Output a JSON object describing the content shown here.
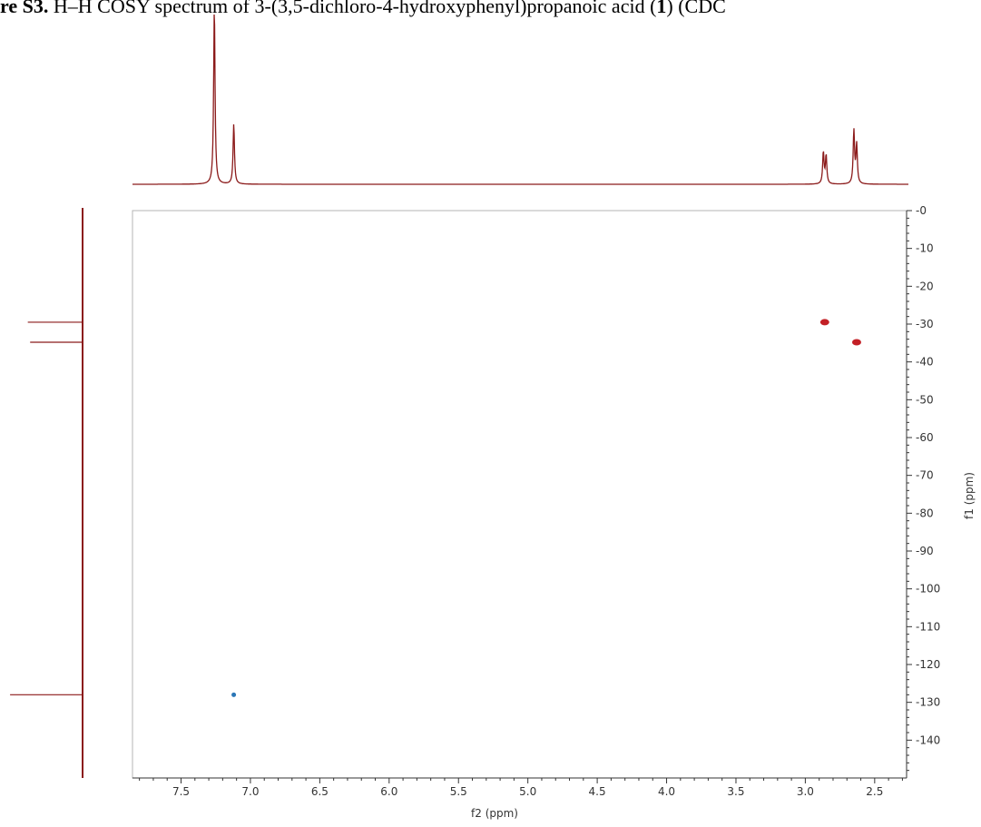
{
  "caption": {
    "prefix": "re S3.",
    "text": " H–H COSY spectrum of 3-(3,5-dichloro-4-hydroxyphenyl)propanoic acid (",
    "compound": "1",
    "suffix": ") (CDC"
  },
  "chart_data": {
    "type": "scatter",
    "subtype": "2D NMR COSY contour plot with 1D projections",
    "xlabel": "f2 (ppm)",
    "ylabel": "f1 (ppm)",
    "xlim": [
      7.85,
      2.27
    ],
    "ylim": [
      0,
      150
    ],
    "x_ticks": [
      "7.5",
      "7.0",
      "6.5",
      "6.0",
      "5.5",
      "5.0",
      "4.5",
      "4.0",
      "3.5",
      "3.0",
      "2.5"
    ],
    "x_tick_values": [
      7.5,
      7.0,
      6.5,
      6.0,
      5.5,
      5.0,
      4.5,
      4.0,
      3.5,
      3.0,
      2.5
    ],
    "y_ticks": [
      "0",
      "10",
      "20",
      "30",
      "40",
      "50",
      "60",
      "70",
      "80",
      "90",
      "100",
      "110",
      "120",
      "130",
      "140"
    ],
    "y_tick_values": [
      0,
      10,
      20,
      30,
      40,
      50,
      60,
      70,
      80,
      90,
      100,
      110,
      120,
      130,
      140
    ],
    "cross_peaks": [
      {
        "f2": 2.86,
        "f1": 29.5,
        "color": "#c0141a"
      },
      {
        "f2": 2.63,
        "f1": 34.8,
        "color": "#c0141a"
      },
      {
        "f2": 7.12,
        "f1": 128.0,
        "color": "#1f6fb2"
      }
    ],
    "top_projection_peaks": [
      {
        "ppm": 7.26,
        "height": 1.0
      },
      {
        "ppm": 7.12,
        "height": 0.34
      },
      {
        "ppm": 2.87,
        "height": 0.18
      },
      {
        "ppm": 2.85,
        "height": 0.16
      },
      {
        "ppm": 2.65,
        "height": 0.3
      },
      {
        "ppm": 2.63,
        "height": 0.22
      }
    ],
    "left_projection_peaks": [
      {
        "f1": 29.5,
        "length": 0.71
      },
      {
        "f1": 34.8,
        "length": 0.68
      },
      {
        "f1": 128.0,
        "length": 0.94
      }
    ],
    "colors": {
      "projection": "#8b1a1a",
      "frame": "#b4b4b4",
      "axis": "#333333"
    }
  }
}
